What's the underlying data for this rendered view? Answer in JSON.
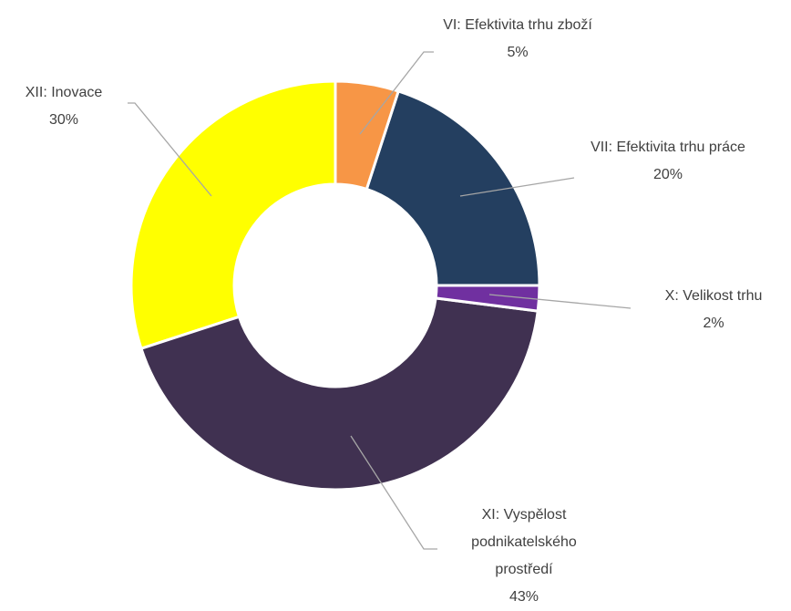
{
  "chart_data": {
    "type": "donut",
    "categories": [
      "VI: Efektivita trhu zboží",
      "VII: Efektivita trhu práce",
      "X: Velikost trhu",
      "XI: Vyspělost podnikatelského prostředí",
      "XII: Inovace"
    ],
    "values": [
      5,
      20,
      2,
      43,
      30
    ],
    "value_labels": [
      "5%",
      "20%",
      "2%",
      "43%",
      "30%"
    ],
    "colors": [
      "#f79646",
      "#243f60",
      "#7030a0",
      "#403151",
      "#ffff00"
    ]
  }
}
